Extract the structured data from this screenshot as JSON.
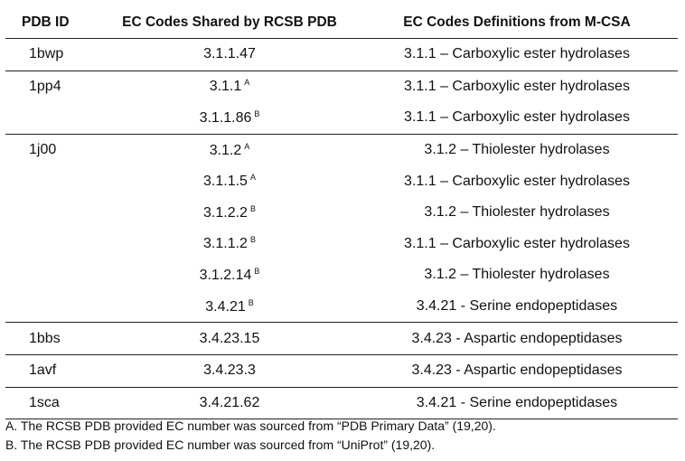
{
  "headers": {
    "pdb_id": "PDB ID",
    "ec_codes": "EC Codes Shared by RCSB PDB",
    "ec_definitions": "EC Codes Definitions from M-CSA"
  },
  "rows": [
    {
      "pdb": "1bwp",
      "ec": "3.1.1.47",
      "note": "",
      "def": "3.1.1 – Carboxylic ester hydrolases",
      "group_end": true
    },
    {
      "pdb": "1pp4",
      "ec": "3.1.1",
      "note": "A",
      "def": "3.1.1 – Carboxylic ester hydrolases",
      "group_end": false
    },
    {
      "pdb": "",
      "ec": "3.1.1.86",
      "note": "B",
      "def": "3.1.1 – Carboxylic ester hydrolases",
      "group_end": true
    },
    {
      "pdb": "1j00",
      "ec": "3.1.2",
      "note": "A",
      "def": "3.1.2 – Thiolester hydrolases",
      "group_end": false
    },
    {
      "pdb": "",
      "ec": "3.1.1.5",
      "note": "A",
      "def": "3.1.1 – Carboxylic ester hydrolases",
      "group_end": false
    },
    {
      "pdb": "",
      "ec": "3.1.2.2",
      "note": "B",
      "def": "3.1.2 – Thiolester hydrolases",
      "group_end": false
    },
    {
      "pdb": "",
      "ec": "3.1.1.2",
      "note": "B",
      "def": "3.1.1 – Carboxylic ester hydrolases",
      "group_end": false
    },
    {
      "pdb": "",
      "ec": "3.1.2.14",
      "note": "B",
      "def": "3.1.2 – Thiolester hydrolases",
      "group_end": false
    },
    {
      "pdb": "",
      "ec": "3.4.21",
      "note": "B",
      "def": "3.4.21 - Serine endopeptidases",
      "group_end": true
    },
    {
      "pdb": "1bbs",
      "ec": "3.4.23.15",
      "note": "",
      "def": "3.4.23 - Aspartic endopeptidases",
      "group_end": true
    },
    {
      "pdb": "1avf",
      "ec": "3.4.23.3",
      "note": "",
      "def": "3.4.23 - Aspartic endopeptidases",
      "group_end": true
    },
    {
      "pdb": "1sca",
      "ec": "3.4.21.62",
      "note": "",
      "def": "3.4.21 - Serine endopeptidases",
      "group_end": true
    }
  ],
  "footnotes": [
    "A. The RCSB PDB provided EC number was sourced from “PDB Primary Data” (19,20).",
    "B. The RCSB PDB provided EC number was sourced from “UniProt” (19,20)."
  ]
}
